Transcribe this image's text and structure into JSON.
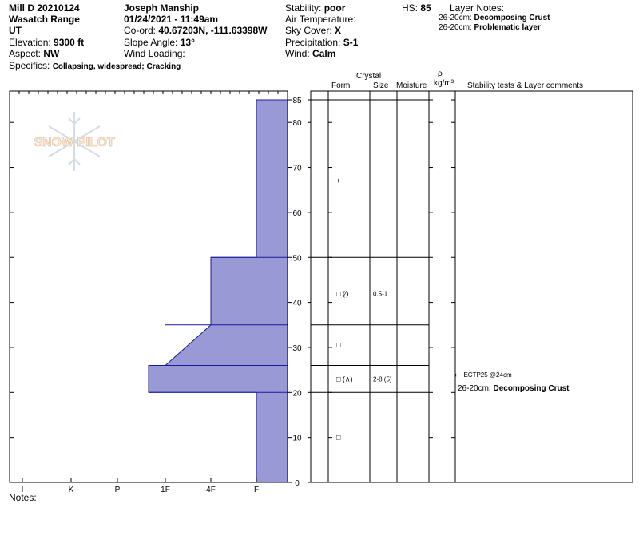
{
  "header": {
    "title": "Mill D 20210124",
    "range": "Wasatch Range",
    "state": "UT",
    "elevation_label": "Elevation:",
    "elevation": "9300 ft",
    "aspect_label": "Aspect:",
    "aspect": "NW",
    "specifics_label": "Specifics:",
    "specifics": "Collapsing, widespread; Cracking",
    "observer": "Joseph Manship",
    "datetime": "01/24/2021 - 11:49am",
    "coord_label": "Co-ord:",
    "coord": "40.67203N, -111.63398W",
    "slope_label": "Slope Angle:",
    "slope": "13°",
    "wind_loading_label": "Wind Loading:",
    "wind_loading": "",
    "stability_label": "Stability:",
    "stability": "poor",
    "air_temp_label": "Air Temperature:",
    "air_temp": "",
    "sky_label": "Sky Cover:",
    "sky": "X",
    "precip_label": "Precipitation:",
    "precip": "S-1",
    "wind_label": "Wind:",
    "wind": "Calm",
    "hs_label": "HS:",
    "hs": "85",
    "layer_notes_label": "Layer Notes:",
    "layer_notes": [
      {
        "depth": "26-20cm:",
        "text": "Decomposing Crust"
      },
      {
        "depth": "26-20cm:",
        "text": "Problematic layer"
      }
    ]
  },
  "logo_text": "SNOW PILOT",
  "columns": {
    "crystal": "Crystal",
    "form": "Form",
    "size": "Size",
    "moisture": "Moisture",
    "rho": "ρ",
    "density": "kg/m³",
    "comments": "Stability tests & Layer comments"
  },
  "notes_label": "Notes:",
  "test_result": "ECTP25 @24cm",
  "layer_comment": {
    "depth": "26-20cm:",
    "text": "Decomposing Crust"
  },
  "colors": {
    "hardness_fill": "#9999d6",
    "hardness_stroke": "#1a1aa0"
  },
  "chart_data": {
    "type": "bar",
    "title": "",
    "xlabel": "",
    "ylabel": "",
    "x_ticks": [
      "I",
      "K",
      "P",
      "1F",
      "4F",
      "F"
    ],
    "y_ticks": [
      0,
      10,
      20,
      30,
      40,
      50,
      60,
      70,
      80,
      85
    ],
    "ylim": [
      0,
      85
    ],
    "hardness_profile": [
      {
        "top": 85,
        "bottom": 50,
        "hardness_top": "F",
        "hardness_bottom": "F"
      },
      {
        "top": 50,
        "bottom": 35,
        "hardness_top": "4F",
        "hardness_bottom": "4F"
      },
      {
        "top": 35,
        "bottom": 26,
        "hardness_top": "4F",
        "hardness_bottom": "1F"
      },
      {
        "top": 26,
        "bottom": 20,
        "hardness_top": "1F-",
        "hardness_bottom": "1F-"
      },
      {
        "top": 20,
        "bottom": 0,
        "hardness_top": "F",
        "hardness_bottom": "F"
      }
    ],
    "layer_boundaries": [
      85,
      50,
      35,
      26,
      20,
      0
    ],
    "layers": [
      {
        "top": 85,
        "bottom": 50,
        "form": "+",
        "size": "",
        "marker_depth": 67
      },
      {
        "top": 50,
        "bottom": 35,
        "form": "□ (⁄)",
        "size": "0.5-1",
        "marker_depth": 42
      },
      {
        "top": 35,
        "bottom": 26,
        "form": "□",
        "size": "",
        "marker_depth": 30.5
      },
      {
        "top": 26,
        "bottom": 20,
        "form": "□ (∧)",
        "size": "2-8 (5)",
        "marker_depth": 23
      },
      {
        "top": 20,
        "bottom": 0,
        "form": "□",
        "size": "",
        "marker_depth": 10
      }
    ]
  }
}
